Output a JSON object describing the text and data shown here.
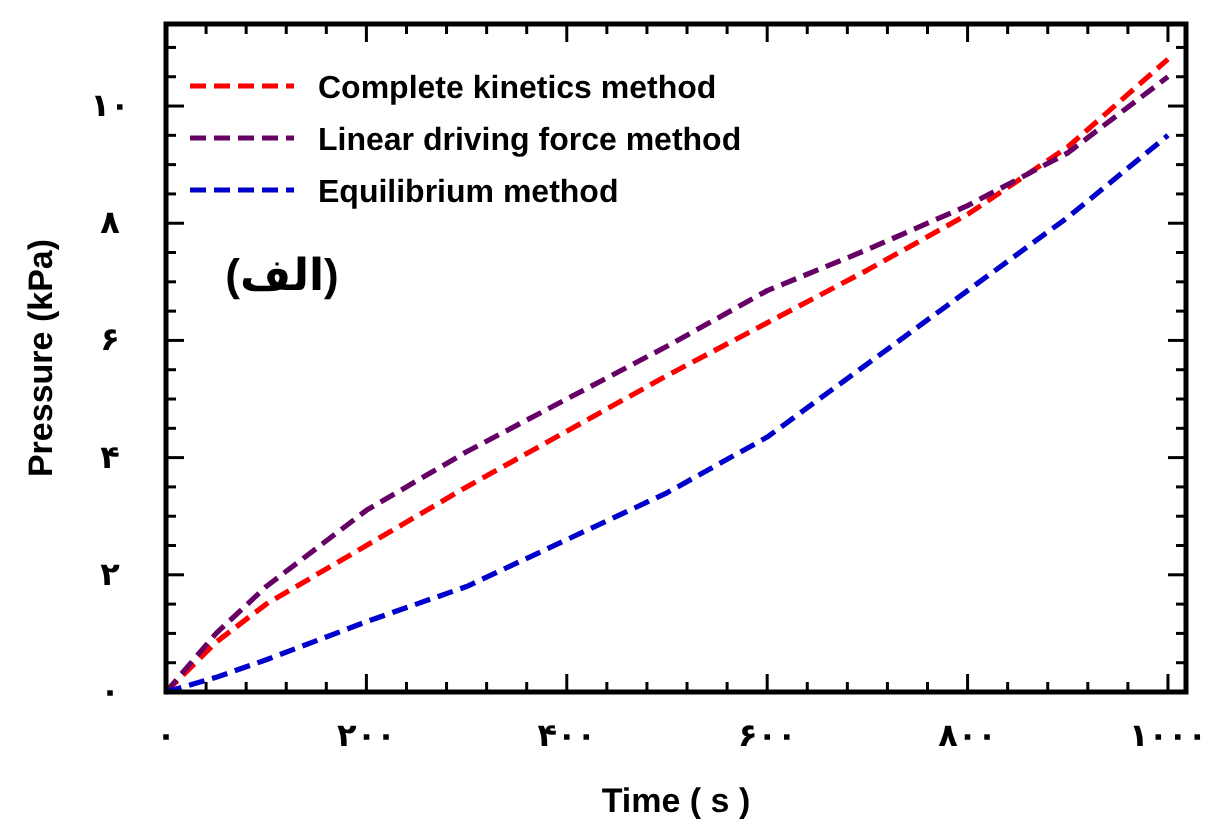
{
  "chart_data": {
    "type": "line",
    "xlabel": "Time ( s )",
    "ylabel": "Pressure (kPa)",
    "x": [
      0,
      50,
      100,
      200,
      300,
      400,
      500,
      600,
      700,
      800,
      900,
      1000
    ],
    "series": [
      {
        "name": "Complete kinetics method",
        "color": "#ff0000",
        "line_style": "dashed",
        "values": [
          0,
          0.85,
          1.5,
          2.5,
          3.5,
          4.45,
          5.4,
          6.3,
          7.2,
          8.15,
          9.3,
          10.8
        ]
      },
      {
        "name": "Linear driving force method",
        "color": "#660066",
        "line_style": "dashed",
        "values": [
          0,
          1.0,
          1.8,
          3.1,
          4.1,
          5.0,
          5.9,
          6.85,
          7.55,
          8.3,
          9.2,
          10.5
        ]
      },
      {
        "name": "Equilibrium method",
        "color": "#0000cc",
        "line_style": "dashed",
        "values": [
          0,
          0.25,
          0.55,
          1.2,
          1.8,
          2.6,
          3.4,
          4.35,
          5.6,
          6.85,
          8.1,
          9.5
        ]
      }
    ],
    "xlim": [
      0,
      1018
    ],
    "ylim": [
      0,
      11.4
    ],
    "xticks": [
      {
        "value": 0,
        "label": "۰"
      },
      {
        "value": 40,
        "label": null
      },
      {
        "value": 80,
        "label": null
      },
      {
        "value": 120,
        "label": null
      },
      {
        "value": 160,
        "label": null
      },
      {
        "value": 200,
        "label": "۲۰۰"
      },
      {
        "value": 240,
        "label": null
      },
      {
        "value": 280,
        "label": null
      },
      {
        "value": 320,
        "label": null
      },
      {
        "value": 360,
        "label": null
      },
      {
        "value": 400,
        "label": "۴۰۰"
      },
      {
        "value": 440,
        "label": null
      },
      {
        "value": 480,
        "label": null
      },
      {
        "value": 520,
        "label": null
      },
      {
        "value": 560,
        "label": null
      },
      {
        "value": 600,
        "label": "۶۰۰"
      },
      {
        "value": 640,
        "label": null
      },
      {
        "value": 680,
        "label": null
      },
      {
        "value": 720,
        "label": null
      },
      {
        "value": 760,
        "label": null
      },
      {
        "value": 800,
        "label": "۸۰۰"
      },
      {
        "value": 840,
        "label": null
      },
      {
        "value": 880,
        "label": null
      },
      {
        "value": 920,
        "label": null
      },
      {
        "value": 960,
        "label": null
      },
      {
        "value": 1000,
        "label": "۱۰۰۰"
      }
    ],
    "yticks": [
      {
        "value": 0,
        "label": "۰"
      },
      {
        "value": 0.5,
        "label": null
      },
      {
        "value": 1,
        "label": null
      },
      {
        "value": 1.5,
        "label": null
      },
      {
        "value": 2,
        "label": "۲"
      },
      {
        "value": 2.5,
        "label": null
      },
      {
        "value": 3,
        "label": null
      },
      {
        "value": 3.5,
        "label": null
      },
      {
        "value": 4,
        "label": "۴"
      },
      {
        "value": 4.5,
        "label": null
      },
      {
        "value": 5,
        "label": null
      },
      {
        "value": 5.5,
        "label": null
      },
      {
        "value": 6,
        "label": "۶"
      },
      {
        "value": 6.5,
        "label": null
      },
      {
        "value": 7,
        "label": null
      },
      {
        "value": 7.5,
        "label": null
      },
      {
        "value": 8,
        "label": "۸"
      },
      {
        "value": 8.5,
        "label": null
      },
      {
        "value": 9,
        "label": null
      },
      {
        "value": 9.5,
        "label": null
      },
      {
        "value": 10,
        "label": "۱۰"
      },
      {
        "value": 10.5,
        "label": null
      },
      {
        "value": 11,
        "label": null
      }
    ],
    "annotations": [
      "(الف)"
    ],
    "legend": "top left",
    "grid": false,
    "marker": "none"
  }
}
